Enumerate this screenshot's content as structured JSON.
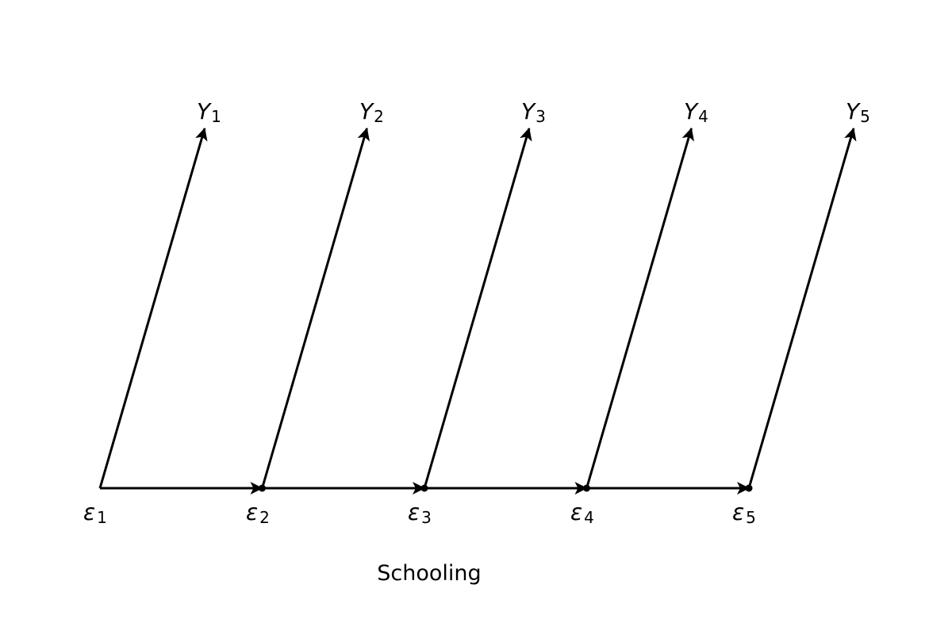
{
  "diagram": {
    "xlabel": "Schooling",
    "line_color": "#000000",
    "nodes": [
      {
        "id": "e1",
        "symbol": "ε",
        "subscript": "1"
      },
      {
        "id": "e2",
        "symbol": "ε",
        "subscript": "2"
      },
      {
        "id": "e3",
        "symbol": "ε",
        "subscript": "3"
      },
      {
        "id": "e4",
        "symbol": "ε",
        "subscript": "4"
      },
      {
        "id": "e5",
        "symbol": "ε",
        "subscript": "5"
      }
    ],
    "outcomes": [
      {
        "id": "y1",
        "symbol": "Y",
        "subscript": "1"
      },
      {
        "id": "y2",
        "symbol": "Y",
        "subscript": "2"
      },
      {
        "id": "y3",
        "symbol": "Y",
        "subscript": "3"
      },
      {
        "id": "y4",
        "symbol": "Y",
        "subscript": "4"
      },
      {
        "id": "y5",
        "symbol": "Y",
        "subscript": "5"
      }
    ]
  }
}
